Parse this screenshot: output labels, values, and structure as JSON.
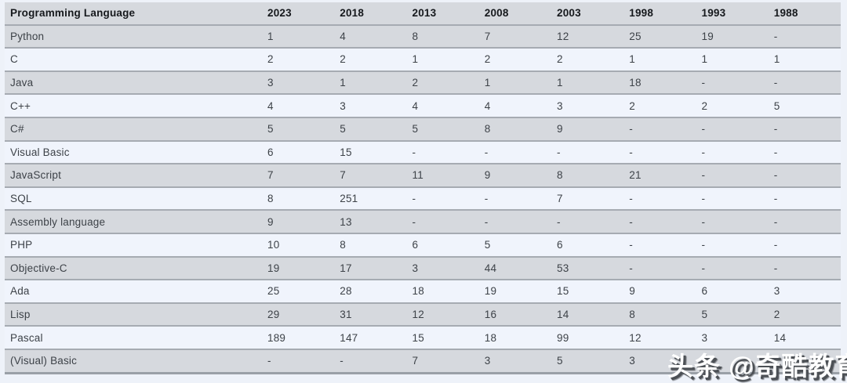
{
  "colors": {
    "page_background": "#eef2f9",
    "row_gray": "#d6d9de",
    "row_light": "#f0f4fc",
    "separator": "#a6abb2",
    "bottom_border": "#9aa0a7",
    "header_text": "#16191d",
    "cell_text": "#3d4248",
    "watermark_text": "#ffffff",
    "watermark_shadow": "#4c5055"
  },
  "watermark": {
    "text": "头条 @奇酷教育"
  },
  "chart_data": {
    "type": "table",
    "title": "",
    "columns": [
      "Programming Language",
      "2023",
      "2018",
      "2013",
      "2008",
      "2003",
      "1998",
      "1993",
      "1988"
    ],
    "rows": [
      [
        "Python",
        "1",
        "4",
        "8",
        "7",
        "12",
        "25",
        "19",
        "-"
      ],
      [
        "C",
        "2",
        "2",
        "1",
        "2",
        "2",
        "1",
        "1",
        "1"
      ],
      [
        "Java",
        "3",
        "1",
        "2",
        "1",
        "1",
        "18",
        "-",
        "-"
      ],
      [
        "C++",
        "4",
        "3",
        "4",
        "4",
        "3",
        "2",
        "2",
        "5"
      ],
      [
        "C#",
        "5",
        "5",
        "5",
        "8",
        "9",
        "-",
        "-",
        "-"
      ],
      [
        "Visual Basic",
        "6",
        "15",
        "-",
        "-",
        "-",
        "-",
        "-",
        "-"
      ],
      [
        "JavaScript",
        "7",
        "7",
        "11",
        "9",
        "8",
        "21",
        "-",
        "-"
      ],
      [
        "SQL",
        "8",
        "251",
        "-",
        "-",
        "7",
        "-",
        "-",
        "-"
      ],
      [
        "Assembly language",
        "9",
        "13",
        "-",
        "-",
        "-",
        "-",
        "-",
        "-"
      ],
      [
        "PHP",
        "10",
        "8",
        "6",
        "5",
        "6",
        "-",
        "-",
        "-"
      ],
      [
        "Objective-C",
        "19",
        "17",
        "3",
        "44",
        "53",
        "-",
        "-",
        "-"
      ],
      [
        "Ada",
        "25",
        "28",
        "18",
        "19",
        "15",
        "9",
        "6",
        "3"
      ],
      [
        "Lisp",
        "29",
        "31",
        "12",
        "16",
        "14",
        "8",
        "5",
        "2"
      ],
      [
        "Pascal",
        "189",
        "147",
        "15",
        "18",
        "99",
        "12",
        "3",
        "14"
      ],
      [
        "(Visual) Basic",
        "-",
        "-",
        "7",
        "3",
        "5",
        "3",
        "",
        ""
      ]
    ],
    "layout": {
      "striping": "header and odd data rows gray, even data rows light blue",
      "note": "last row 1993 and 1988 cells obscured by watermark"
    }
  }
}
